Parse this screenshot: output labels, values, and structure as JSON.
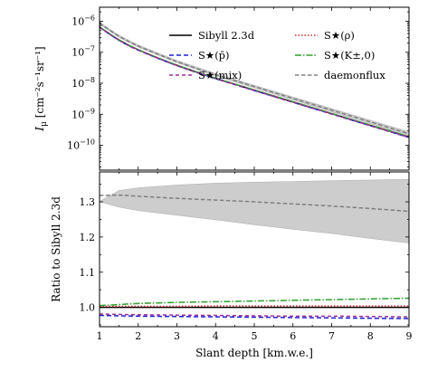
{
  "chart_data": [
    {
      "panel": "top",
      "type": "line",
      "yscale": "log",
      "ylabel_main": "I",
      "ylabel_sub": "μ",
      "ylabel_unit": "[cm⁻²s⁻¹sr⁻¹]",
      "xlim": [
        1,
        9
      ],
      "ylim_log10": [
        -10.8,
        -5.55
      ],
      "yticks": [
        {
          "base": "10",
          "exp": "−6",
          "v": -6
        },
        {
          "base": "10",
          "exp": "−7",
          "v": -7
        },
        {
          "base": "10",
          "exp": "−8",
          "v": -8
        },
        {
          "base": "10",
          "exp": "−9",
          "v": -9
        },
        {
          "base": "10",
          "exp": "−10",
          "v": -10
        }
      ],
      "x": [
        1,
        1.5,
        2,
        3,
        4,
        5,
        6,
        7,
        8,
        9
      ],
      "series": [
        {
          "name": "Sibyll 2.3d",
          "color": "#000000",
          "dash": "",
          "values": [
            6.5e-07,
            2.5e-07,
            1.2e-07,
            3.8e-08,
            1.45e-08,
            6e-09,
            2.5e-09,
            1.05e-09,
            4.4e-10,
            1.85e-10
          ]
        },
        {
          "name": "S★(ρ)",
          "color": "#d62728",
          "dash": "1.5,2",
          "values": [
            6.5e-07,
            2.5e-07,
            1.2e-07,
            3.8e-08,
            1.45e-08,
            6e-09,
            2.5e-09,
            1.05e-09,
            4.4e-10,
            1.85e-10
          ]
        },
        {
          "name": "S★(p̄)",
          "color": "#1f1fd8",
          "dash": "5,3",
          "values": [
            6.35e-07,
            2.44e-07,
            1.17e-07,
            3.7e-08,
            1.41e-08,
            5.83e-09,
            2.43e-09,
            1.02e-09,
            4.27e-10,
            1.79e-10
          ]
        },
        {
          "name": "S★(K±,0)",
          "color": "#2ca02c",
          "dash": "7,2,1.5,2",
          "values": [
            6.55e-07,
            2.52e-07,
            1.21e-07,
            3.85e-08,
            1.47e-08,
            6.1e-09,
            2.55e-09,
            1.07e-09,
            4.5e-10,
            1.9e-10
          ]
        },
        {
          "name": "S★(mix)",
          "color": "#9b2f9b",
          "dash": "4,3",
          "values": [
            6.38e-07,
            2.45e-07,
            1.18e-07,
            3.72e-08,
            1.42e-08,
            5.85e-09,
            2.44e-09,
            1.03e-09,
            4.3e-10,
            1.8e-10
          ]
        },
        {
          "name": "daemonflux",
          "color": "#808080",
          "dash": "4.5,2.5",
          "values": [
            8.6e-07,
            3.3e-07,
            1.58e-07,
            5e-08,
            1.9e-08,
            7.85e-09,
            3.25e-09,
            1.36e-09,
            5.7e-10,
            2.35e-10
          ]
        }
      ],
      "band": {
        "color": "#c8c8c8",
        "upper": [
          9.2e-07,
          3.55e-07,
          1.7e-07,
          5.4e-08,
          2.06e-08,
          8.6e-09,
          3.6e-09,
          1.52e-09,
          6.4e-10,
          2.7e-10
        ],
        "lower": [
          8e-07,
          3.05e-07,
          1.46e-07,
          4.6e-08,
          1.73e-08,
          7.1e-09,
          2.9e-09,
          1.2e-09,
          5e-10,
          2e-10
        ]
      }
    },
    {
      "panel": "bottom",
      "type": "line",
      "ylabel": "Ratio to Sibyll 2.3d",
      "xlabel": "Slant depth [km.w.e.]",
      "xlim": [
        1,
        9
      ],
      "ylim": [
        0.945,
        1.385
      ],
      "xticks": [
        "1",
        "2",
        "3",
        "4",
        "5",
        "6",
        "7",
        "8",
        "9"
      ],
      "yticks": [
        "1.0",
        "1.1",
        "1.2",
        "1.3"
      ],
      "x": [
        1,
        1.5,
        2,
        3,
        4,
        5,
        6,
        7,
        8,
        9
      ],
      "series": [
        {
          "name": "Sibyll 2.3d",
          "color": "#000000",
          "dash": "",
          "values": [
            1.0,
            1.0,
            1.0,
            1.0,
            1.0,
            1.0,
            1.0,
            1.0,
            1.0,
            1.0
          ]
        },
        {
          "name": "S★(ρ)",
          "color": "#d62728",
          "dash": "1.5,2",
          "values": [
            1.003,
            1.003,
            1.003,
            1.003,
            1.004,
            1.004,
            1.004,
            1.004,
            1.004,
            1.004
          ]
        },
        {
          "name": "S★(K±,0)",
          "color": "#2ca02c",
          "dash": "7,2,1.5,2",
          "values": [
            1.005,
            1.008,
            1.011,
            1.014,
            1.016,
            1.018,
            1.02,
            1.022,
            1.024,
            1.026
          ]
        },
        {
          "name": "S★(p̄)",
          "color": "#1f1fd8",
          "dash": "5,3",
          "values": [
            0.977,
            0.976,
            0.975,
            0.974,
            0.973,
            0.972,
            0.971,
            0.97,
            0.969,
            0.968
          ]
        },
        {
          "name": "S★(mix)",
          "color": "#9b2f9b",
          "dash": "4,3",
          "values": [
            0.981,
            0.98,
            0.979,
            0.978,
            0.977,
            0.976,
            0.975,
            0.975,
            0.974,
            0.973
          ]
        },
        {
          "name": "daemonflux",
          "color": "#808080",
          "dash": "4.5,2.5",
          "values": [
            1.318,
            1.319,
            1.316,
            1.31,
            1.305,
            1.3,
            1.294,
            1.288,
            1.281,
            1.273
          ]
        }
      ],
      "band": {
        "color": "#c8c8c8",
        "upper": [
          1.301,
          1.332,
          1.34,
          1.348,
          1.353,
          1.356,
          1.358,
          1.36,
          1.362,
          1.364
        ],
        "lower": [
          1.301,
          1.285,
          1.275,
          1.262,
          1.249,
          1.235,
          1.222,
          1.21,
          1.196,
          1.183
        ]
      }
    }
  ],
  "legend": {
    "placement": "top-right of upper panel",
    "items": [
      {
        "text": "Sibyll 2.3d",
        "color": "#000000",
        "dash": ""
      },
      {
        "text": "S★(ρ)",
        "color": "#d62728",
        "dash": "1.5,2"
      },
      {
        "text": "S★(p̄)",
        "color": "#1f1fd8",
        "dash": "5,3"
      },
      {
        "text": "S★(K±,0)",
        "color": "#2ca02c",
        "dash": "7,2,1.5,2"
      },
      {
        "text": "S★(mix)",
        "color": "#9b2f9b",
        "dash": "4,3"
      },
      {
        "text": "daemonflux",
        "color": "#808080",
        "dash": "4.5,2.5"
      }
    ]
  }
}
